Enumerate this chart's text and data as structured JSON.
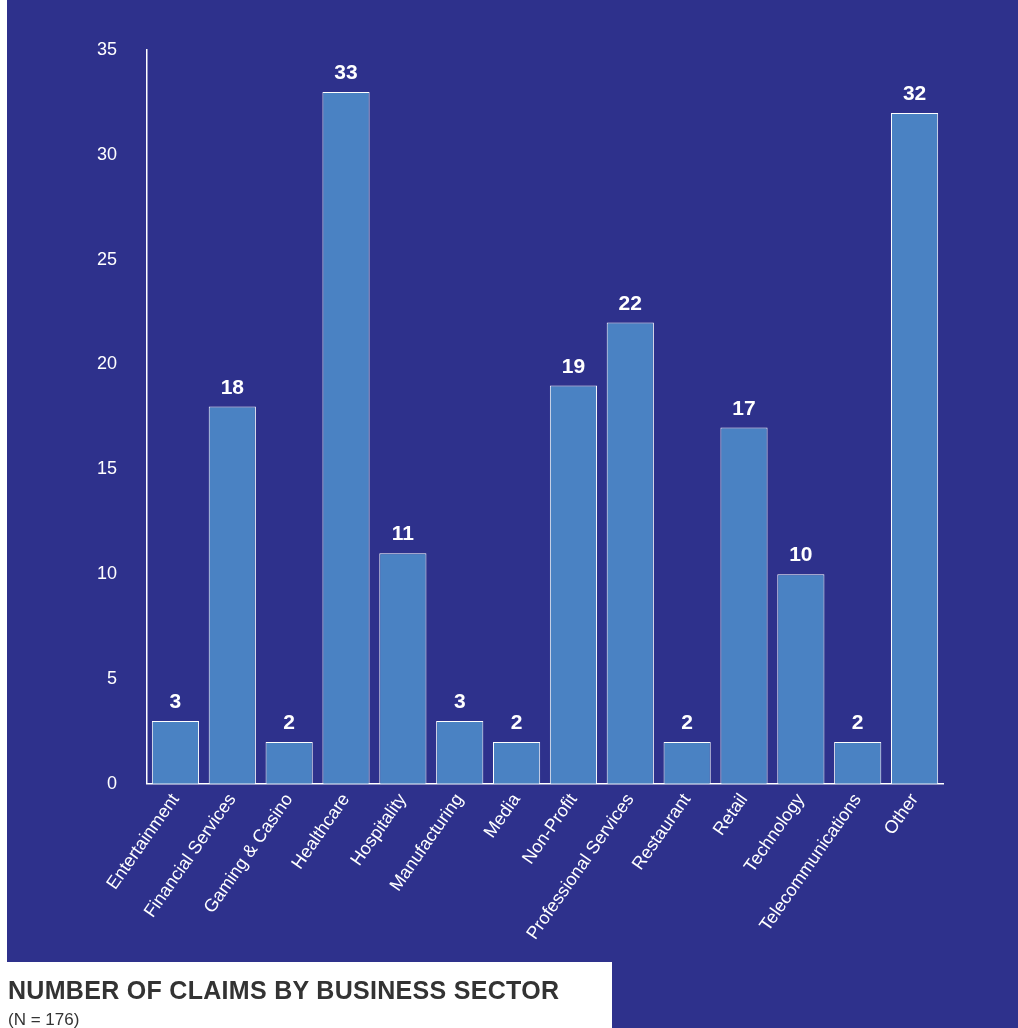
{
  "chart_data": {
    "type": "bar",
    "title": "NUMBER OF CLAIMS BY BUSINESS SECTOR",
    "subtitle": "(N = 176)",
    "categories": [
      "Entertainment",
      "Financial Services",
      "Gaming & Casino",
      "Healthcare",
      "Hospitality",
      "Manufacturing",
      "Media",
      "Non-Profit",
      "Professional Services",
      "Restaurant",
      "Retail",
      "Technology",
      "Telecommunications",
      "Other"
    ],
    "values": [
      3,
      18,
      2,
      33,
      11,
      3,
      2,
      19,
      22,
      2,
      17,
      10,
      2,
      32
    ],
    "color": "#4a82c3",
    "ylim": [
      0,
      35
    ],
    "yticks": [
      0,
      5,
      10,
      15,
      20,
      25,
      30,
      35
    ],
    "grid": false,
    "legend": false,
    "data_labels": true
  }
}
